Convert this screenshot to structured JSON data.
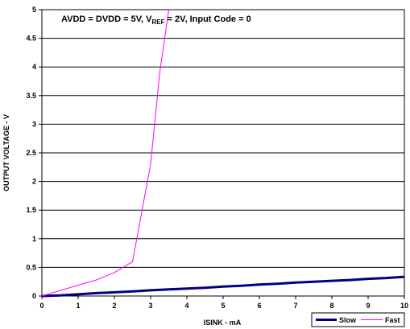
{
  "chart_data": {
    "type": "line",
    "title": "",
    "annotation": {
      "part1": "AVDD = DVDD = 5V, V",
      "sub": "REF",
      "part2": " = 2V, Input Code = 0"
    },
    "xlabel": "ISINK - mA",
    "ylabel": "OUTPUT VOLTAGE - V",
    "xlim": [
      0,
      10
    ],
    "ylim": [
      0,
      5
    ],
    "x_ticks": [
      "0",
      "1",
      "2",
      "3",
      "4",
      "5",
      "6",
      "7",
      "8",
      "9",
      "10"
    ],
    "y_ticks": [
      "0",
      "0.5",
      "1",
      "1.5",
      "2",
      "2.5",
      "3",
      "3.5",
      "4",
      "4.5",
      "5"
    ],
    "grid": "horizontal",
    "legend_position": "bottom-right",
    "series": [
      {
        "name": "Slow",
        "color": "#000080",
        "points": [
          [
            0,
            0
          ],
          [
            0.5,
            0.01
          ],
          [
            1,
            0.03
          ],
          [
            1.5,
            0.05
          ],
          [
            2,
            0.065
          ],
          [
            2.5,
            0.08
          ],
          [
            3,
            0.1
          ],
          [
            3.5,
            0.115
          ],
          [
            4,
            0.13
          ],
          [
            4.5,
            0.145
          ],
          [
            5,
            0.165
          ],
          [
            5.5,
            0.18
          ],
          [
            6,
            0.2
          ],
          [
            6.5,
            0.215
          ],
          [
            7,
            0.235
          ],
          [
            7.5,
            0.25
          ],
          [
            8,
            0.265
          ],
          [
            8.5,
            0.28
          ],
          [
            9,
            0.3
          ],
          [
            9.5,
            0.315
          ],
          [
            10,
            0.335
          ]
        ]
      },
      {
        "name": "Fast",
        "color": "#ff00ff",
        "points": [
          [
            0,
            0
          ],
          [
            1,
            0.19
          ],
          [
            1.5,
            0.28
          ],
          [
            2,
            0.41
          ],
          [
            2.5,
            0.6
          ],
          [
            3,
            2.3
          ],
          [
            3.25,
            3.9
          ],
          [
            3.5,
            5.0
          ]
        ]
      }
    ]
  }
}
